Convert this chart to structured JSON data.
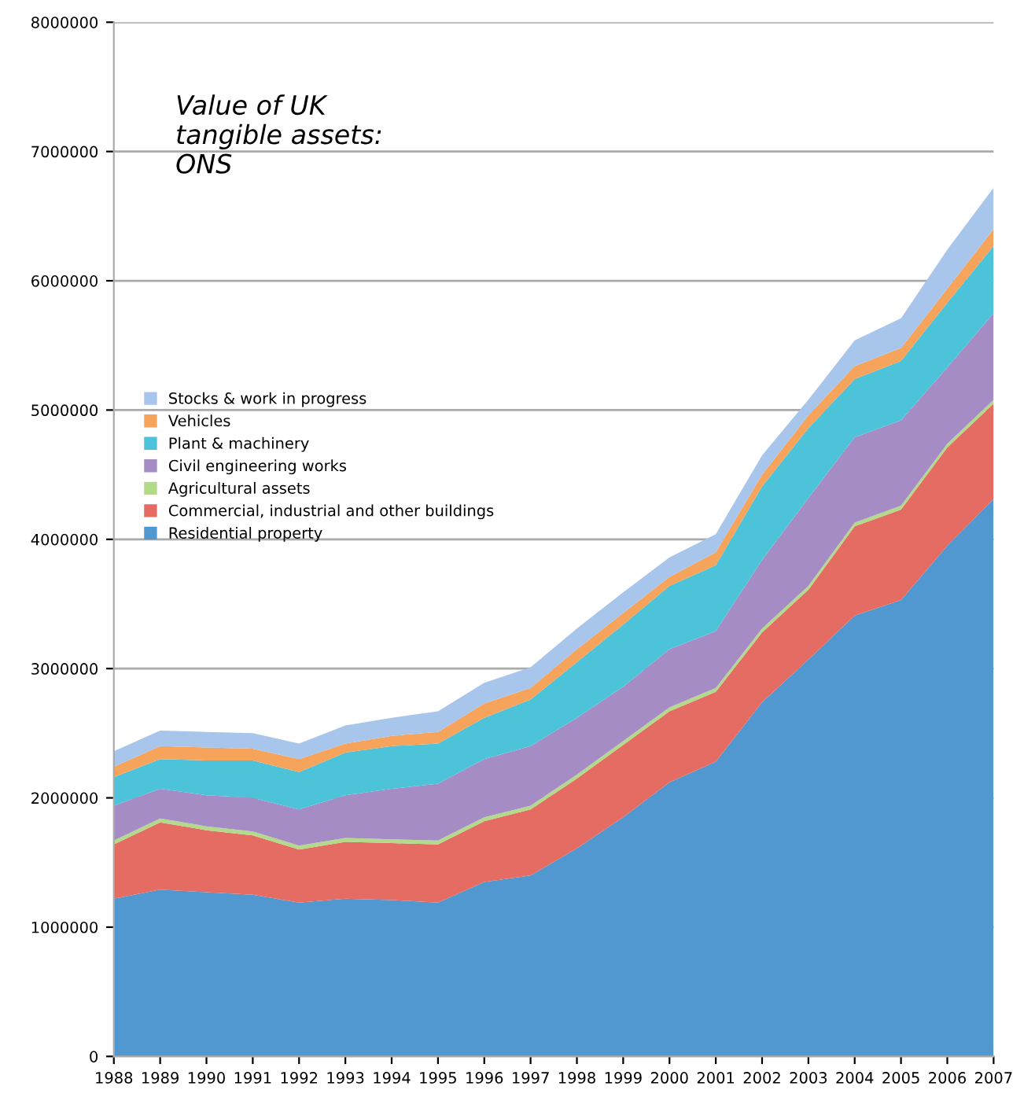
{
  "chart_data": {
    "type": "area",
    "stacked": true,
    "title": "Value of UK\ntangible assets:\nONS",
    "categories": [
      "1988",
      "1989",
      "1990",
      "1991",
      "1992",
      "1993",
      "1994",
      "1995",
      "1996",
      "1997",
      "1998",
      "1999",
      "2000",
      "2001",
      "2002",
      "2003",
      "2004",
      "2005",
      "2006",
      "2007"
    ],
    "series": [
      {
        "name": "Residential property",
        "color": "#5298d0",
        "values": [
          1220000,
          1290000,
          1270000,
          1250000,
          1190000,
          1220000,
          1210000,
          1190000,
          1350000,
          1400000,
          1610000,
          1850000,
          2120000,
          2280000,
          2740000,
          3070000,
          3410000,
          3530000,
          3950000,
          4310000
        ]
      },
      {
        "name": "Commercial, industrial and other buildings",
        "color": "#e46c62",
        "values": [
          420000,
          520000,
          480000,
          460000,
          410000,
          440000,
          440000,
          450000,
          470000,
          510000,
          540000,
          560000,
          550000,
          540000,
          540000,
          540000,
          690000,
          700000,
          760000,
          740000
        ]
      },
      {
        "name": "Agricultural assets",
        "color": "#b3d98a",
        "values": [
          30000,
          30000,
          30000,
          30000,
          30000,
          30000,
          30000,
          30000,
          30000,
          30000,
          30000,
          30000,
          30000,
          30000,
          30000,
          30000,
          30000,
          30000,
          30000,
          30000
        ]
      },
      {
        "name": "Civil engineering works",
        "color": "#a68cc4",
        "values": [
          270000,
          230000,
          240000,
          260000,
          280000,
          330000,
          390000,
          440000,
          450000,
          460000,
          440000,
          420000,
          450000,
          440000,
          530000,
          680000,
          660000,
          660000,
          590000,
          670000
        ]
      },
      {
        "name": "Plant & machinery",
        "color": "#4cc3d9",
        "values": [
          220000,
          230000,
          270000,
          290000,
          290000,
          330000,
          330000,
          310000,
          320000,
          360000,
          430000,
          480000,
          490000,
          510000,
          570000,
          540000,
          450000,
          460000,
          500000,
          520000
        ]
      },
      {
        "name": "Vehicles",
        "color": "#f6a35c",
        "values": [
          80000,
          100000,
          100000,
          90000,
          100000,
          70000,
          80000,
          90000,
          110000,
          90000,
          100000,
          90000,
          70000,
          100000,
          90000,
          100000,
          100000,
          100000,
          110000,
          130000
        ]
      },
      {
        "name": "Stocks & work in progress",
        "color": "#a8c5eb",
        "values": [
          120000,
          120000,
          120000,
          120000,
          120000,
          140000,
          140000,
          160000,
          160000,
          160000,
          160000,
          160000,
          150000,
          140000,
          150000,
          120000,
          200000,
          230000,
          300000,
          320000
        ]
      }
    ],
    "ylim": [
      0,
      8000000
    ],
    "yticks": [
      0,
      1000000,
      2000000,
      3000000,
      4000000,
      5000000,
      6000000,
      7000000,
      8000000
    ],
    "grid": "y",
    "legend": "left"
  }
}
